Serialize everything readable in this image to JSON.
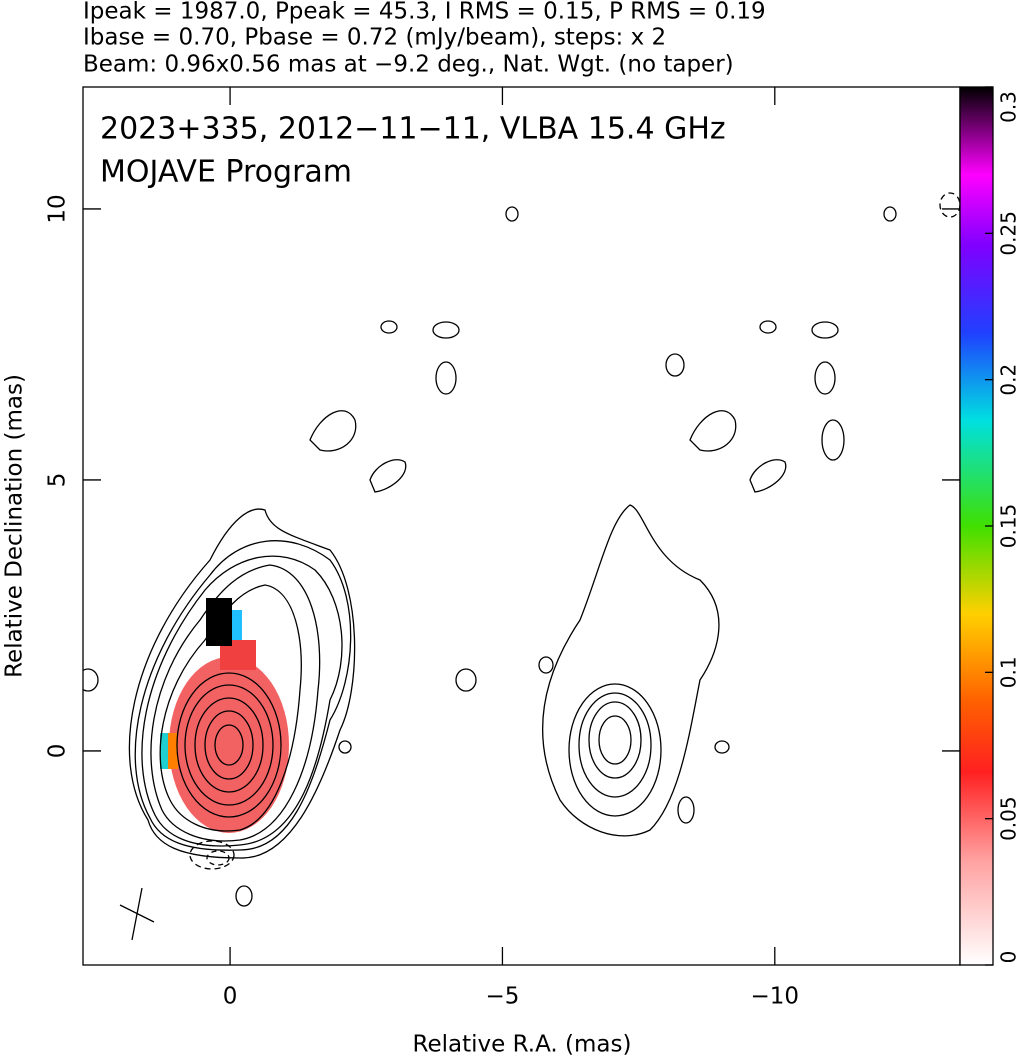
{
  "chart_data": {
    "type": "image",
    "header": [
      "Ipeak = 1987.0, Ppeak = 45.3, I RMS = 0.15, P RMS = 0.19",
      "Ibase = 0.70, Pbase = 0.72 (mJy/beam), steps: x 2",
      "Beam: 0.96x0.56 mas at −9.2 deg., Nat. Wgt. (no taper)"
    ],
    "title": [
      "2023+335, 2012−11−11, VLBA 15.4 GHz",
      "MOJAVE Program"
    ],
    "xlabel": "Relative R.A. (mas)",
    "ylabel": "Relative Declination (mas)",
    "xlim": [
      2.7,
      -13.4
    ],
    "xticks": [
      0,
      {
        "value": -5,
        "label": "−5"
      },
      {
        "value": -10,
        "label": "−10"
      }
    ],
    "ylim": [
      -3.95,
      12.25
    ],
    "yticks": [
      0,
      5,
      10
    ],
    "clim": [
      0,
      0.3
    ],
    "cticks": [
      0,
      0.05,
      0.1,
      0.15,
      0.2,
      0.25,
      0.3
    ]
  }
}
